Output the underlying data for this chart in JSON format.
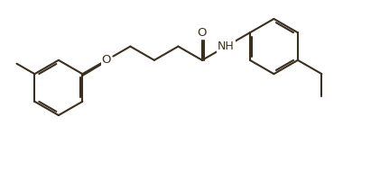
{
  "figsize": [
    4.21,
    1.9
  ],
  "dpi": 100,
  "bg_color": "#ffffff",
  "line_color": "#3a3020",
  "line_width": 1.5,
  "font_size": 9,
  "bl": 0.62,
  "xlim": [
    0.0,
    8.5
  ],
  "ylim": [
    0.5,
    3.8
  ]
}
